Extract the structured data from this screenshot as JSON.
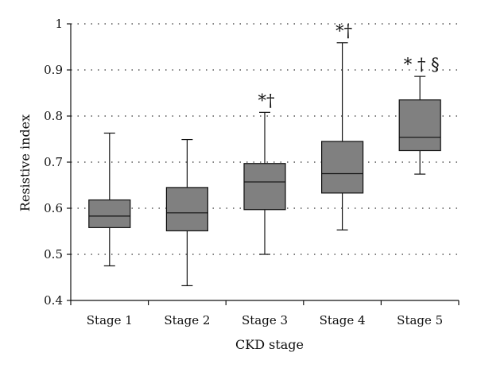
{
  "chart_data": {
    "type": "boxplot",
    "title": "",
    "xlabel": "CKD stage",
    "ylabel": "Resistive index",
    "ylim": [
      0.4,
      1.0
    ],
    "yticks": [
      "0.4",
      "0.5",
      "0.6",
      "0.7",
      "0.8",
      "0.9",
      "1"
    ],
    "grid": "horizontal-dotted",
    "categories": [
      "Stage 1",
      "Stage 2",
      "Stage 3",
      "Stage 4",
      "Stage 5"
    ],
    "boxes": [
      {
        "category": "Stage 1",
        "min": 0.475,
        "q1": 0.558,
        "median": 0.583,
        "q3": 0.618,
        "max": 0.763,
        "annotation": ""
      },
      {
        "category": "Stage 2",
        "min": 0.432,
        "q1": 0.551,
        "median": 0.59,
        "q3": 0.645,
        "max": 0.749,
        "annotation": ""
      },
      {
        "category": "Stage 3",
        "min": 0.5,
        "q1": 0.597,
        "median": 0.657,
        "q3": 0.697,
        "max": 0.808,
        "annotation": "*†"
      },
      {
        "category": "Stage 4",
        "min": 0.553,
        "q1": 0.633,
        "median": 0.675,
        "q3": 0.745,
        "max": 0.959,
        "annotation": "*†"
      },
      {
        "category": "Stage 5",
        "min": 0.674,
        "q1": 0.725,
        "median": 0.754,
        "q3": 0.835,
        "max": 0.886,
        "annotation": "* † §"
      }
    ]
  }
}
